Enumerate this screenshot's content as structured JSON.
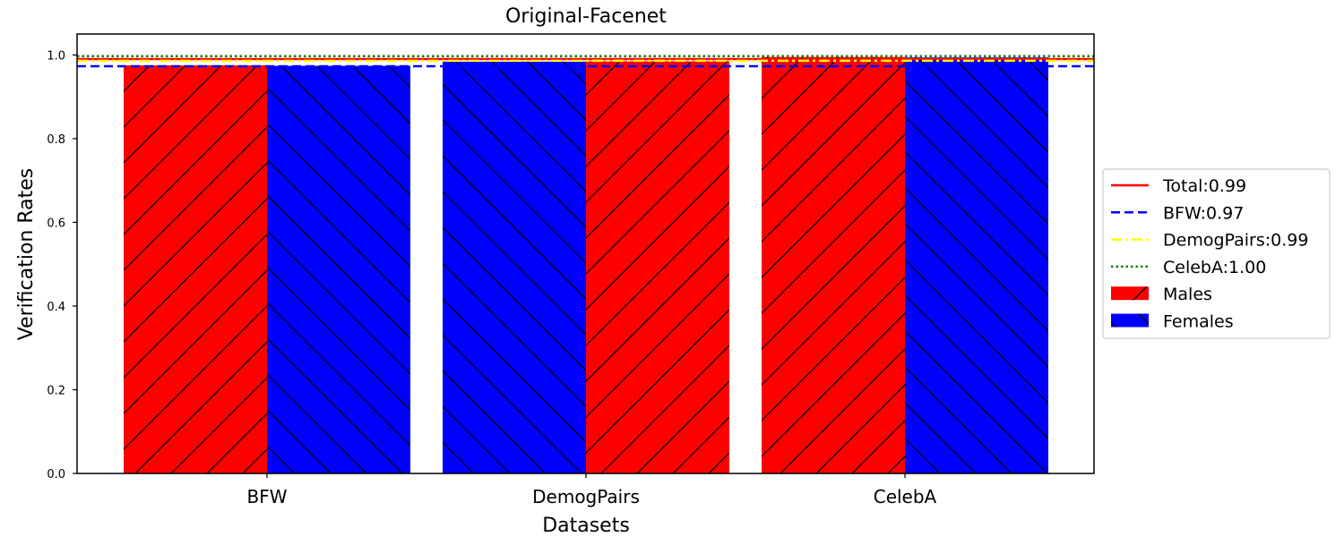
{
  "chart_data": {
    "type": "bar",
    "title": "Original-Facenet",
    "xlabel": "Datasets",
    "ylabel": "Verification Rates",
    "ylim": [
      0,
      1.05
    ],
    "yticks": [
      "0.0",
      "0.2",
      "0.4",
      "0.6",
      "0.8",
      "1.0"
    ],
    "categories": [
      "BFW",
      "DemogPairs",
      "CelebA"
    ],
    "bars": [
      {
        "category": "BFW",
        "series": "Males",
        "value": 0.975
      },
      {
        "category": "BFW",
        "series": "Females",
        "value": 0.974
      },
      {
        "category": "DemogPairs",
        "series": "Females",
        "value": 0.984
      },
      {
        "category": "DemogPairs",
        "series": "Males",
        "value": 0.985
      },
      {
        "category": "CelebA",
        "series": "Males",
        "value": 0.995
      },
      {
        "category": "CelebA",
        "series": "Females",
        "value": 0.994
      }
    ],
    "series": [
      {
        "name": "Males",
        "color": "#ff0000",
        "hatch": "/"
      },
      {
        "name": "Females",
        "color": "#0000ff",
        "hatch": "\\"
      }
    ],
    "reference_lines": [
      {
        "label": "Total:0.99",
        "value": 0.99,
        "color": "#ff0000",
        "style": "solid"
      },
      {
        "label": "BFW:0.97",
        "value": 0.973,
        "color": "#0000ff",
        "style": "dashed"
      },
      {
        "label": "DemogPairs:0.99",
        "value": 0.986,
        "color": "#ffff00",
        "style": "dashdot"
      },
      {
        "label": "CelebA:1.00",
        "value": 0.997,
        "color": "#008000",
        "style": "dotted"
      }
    ],
    "legend_position": "center-right",
    "grid": false
  }
}
